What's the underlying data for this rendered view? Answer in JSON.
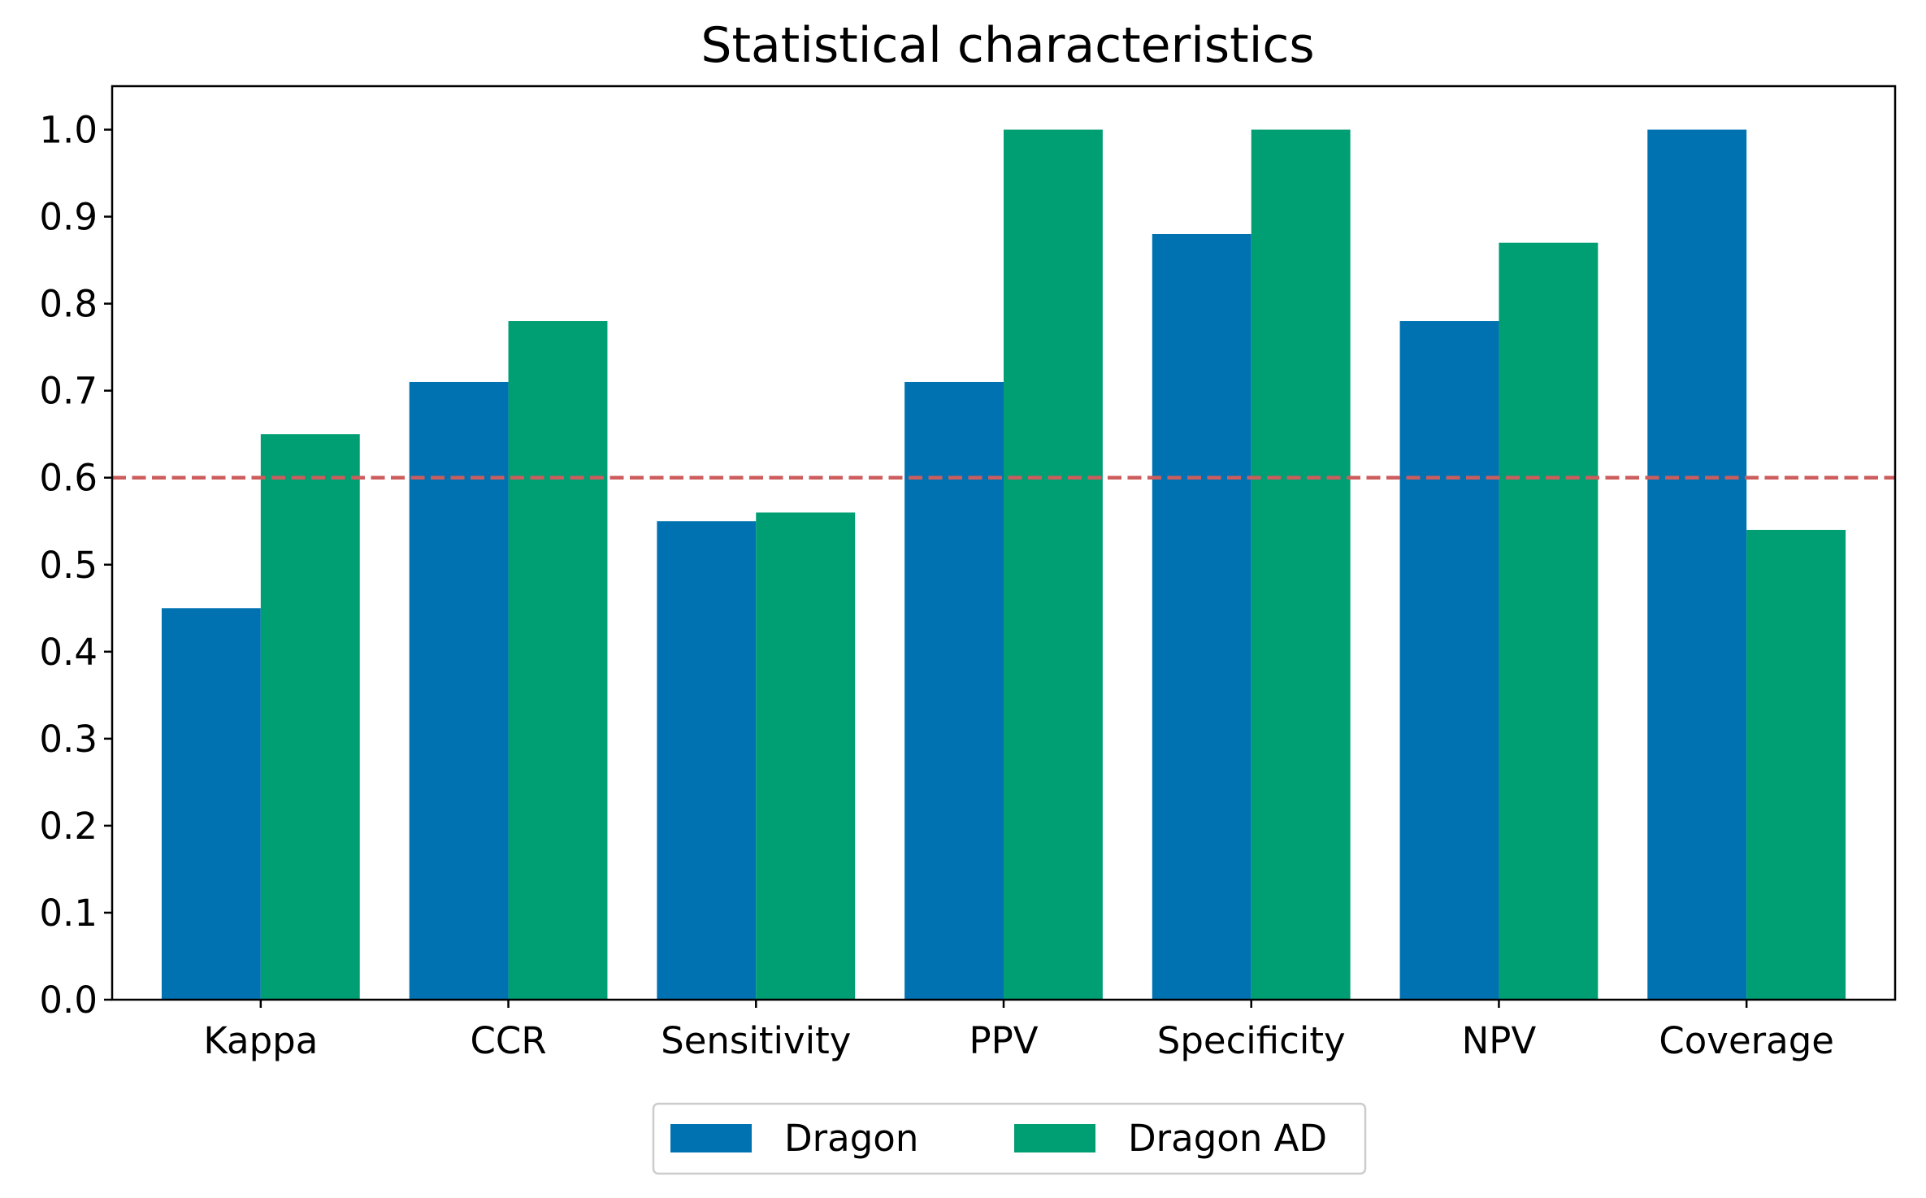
{
  "chart_data": {
    "type": "bar",
    "title": "Statistical characteristics",
    "xlabel": "",
    "ylabel": "",
    "categories": [
      "Kappa",
      "CCR",
      "Sensitivity",
      "PPV",
      "Specificity",
      "NPV",
      "Coverage"
    ],
    "series": [
      {
        "name": "Dragon",
        "color": "#0072b2",
        "values": [
          0.45,
          0.71,
          0.55,
          0.71,
          0.88,
          0.78,
          1.0
        ]
      },
      {
        "name": "Dragon AD",
        "color": "#009e73",
        "values": [
          0.65,
          0.78,
          0.56,
          1.0,
          1.0,
          0.87,
          0.54
        ]
      }
    ],
    "ylim": [
      0.0,
      1.05
    ],
    "yticks": [
      0.0,
      0.1,
      0.2,
      0.3,
      0.4,
      0.5,
      0.6,
      0.7,
      0.8,
      0.9,
      1.0
    ],
    "ytick_labels": [
      "0.0",
      "0.1",
      "0.2",
      "0.3",
      "0.4",
      "0.5",
      "0.6",
      "0.7",
      "0.8",
      "0.9",
      "1.0"
    ],
    "reference_line": {
      "y": 0.6,
      "style": "dashed",
      "color": "#cd5c5c"
    },
    "grid": false,
    "legend": {
      "placement": "bottom-center",
      "columns": 2
    }
  }
}
